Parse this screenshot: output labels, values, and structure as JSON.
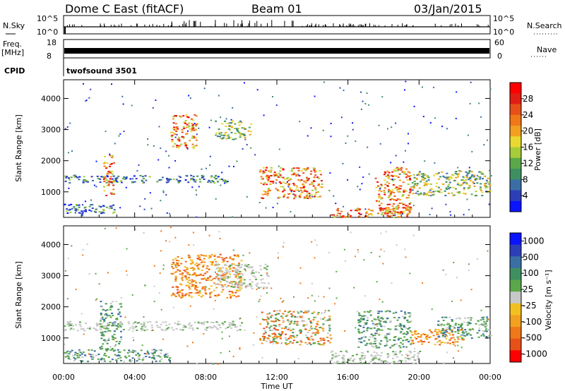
{
  "header": {
    "title": "Dome C East (fitACF)",
    "beam": "Beam 01",
    "date": "03/Jan/2015"
  },
  "top_panels": {
    "nsky_label": "N.Sky",
    "nsky_ticks": [
      "10^5",
      "10^0"
    ],
    "nsearch_label": "N.Search",
    "freq_label": "Freq.",
    "freq_unit": "[MHz]",
    "freq_ticks": [
      "18",
      "8"
    ],
    "nave_label": "Nave",
    "nave_ticks": [
      "60",
      "0"
    ],
    "cpid_label": "CPID",
    "cpid_value": "twofsound 3501"
  },
  "chart_data": [
    {
      "type": "heatmap",
      "name": "power",
      "ylabel": "Slant Range [km]",
      "xlabel": "",
      "x_ticks": [
        "00:00",
        "04:00",
        "08:00",
        "12:00",
        "16:00",
        "20:00",
        "00:00"
      ],
      "y_ticks": [
        1000,
        2000,
        3000,
        4000
      ],
      "ylim": [
        180,
        4600
      ],
      "colorbar": {
        "label": "Power [dB]",
        "ticks": [
          4,
          8,
          12,
          16,
          20,
          24,
          28
        ],
        "range": [
          0,
          32
        ],
        "colors": [
          "#0a14ff",
          "#2d3fb8",
          "#3a6fa6",
          "#3f9060",
          "#5aa84a",
          "#a6cc3a",
          "#e9d830",
          "#f2a020",
          "#f07818",
          "#e8501a",
          "#e01e14",
          "#ff0000"
        ]
      },
      "features": [
        {
          "t0": 0.0,
          "t1": 9.2,
          "r0": 1300,
          "r1": 1550,
          "level": "low"
        },
        {
          "t0": 0.0,
          "t1": 3.0,
          "r0": 300,
          "r1": 620,
          "level": "low"
        },
        {
          "t0": 2.2,
          "t1": 2.8,
          "r0": 900,
          "r1": 2200,
          "level": "high"
        },
        {
          "t0": 6.0,
          "t1": 7.5,
          "r0": 2400,
          "r1": 3500,
          "level": "high"
        },
        {
          "t0": 8.5,
          "t1": 10.5,
          "r0": 2700,
          "r1": 3300,
          "level": "mid"
        },
        {
          "t0": 11.0,
          "t1": 14.5,
          "r0": 800,
          "r1": 1800,
          "level": "high"
        },
        {
          "t0": 15.0,
          "t1": 19.5,
          "r0": 200,
          "r1": 500,
          "level": "high"
        },
        {
          "t0": 17.5,
          "t1": 19.5,
          "r0": 300,
          "r1": 1800,
          "level": "high"
        },
        {
          "t0": 19.5,
          "t1": 24.0,
          "r0": 900,
          "r1": 1700,
          "level": "mid"
        }
      ]
    },
    {
      "type": "heatmap",
      "name": "velocity",
      "ylabel": "Slant Range [km]",
      "xlabel": "Time UT",
      "x_ticks": [
        "00:00",
        "04:00",
        "08:00",
        "12:00",
        "16:00",
        "20:00",
        "00:00"
      ],
      "y_ticks": [
        1000,
        2000,
        3000,
        4000
      ],
      "ylim": [
        180,
        4600
      ],
      "colorbar": {
        "label": "Velocity [m s⁻¹]",
        "ticks": [
          1000,
          500,
          100,
          25,
          -25,
          -100,
          -500,
          -1000
        ],
        "colors": [
          "#0a14ff",
          "#2d3fb8",
          "#3a6fa6",
          "#3f9060",
          "#5aa84a",
          "#c8c8c8",
          "#f2c020",
          "#f2a020",
          "#f07818",
          "#e8501a",
          "#ff0000"
        ]
      },
      "features": [
        {
          "t0": 0.0,
          "t1": 10.0,
          "r0": 1250,
          "r1": 1550,
          "level": "ground"
        },
        {
          "t0": 0.0,
          "t1": 6.0,
          "r0": 250,
          "r1": 650,
          "level": "toward"
        },
        {
          "t0": 2.0,
          "t1": 3.2,
          "r0": 600,
          "r1": 2200,
          "level": "toward"
        },
        {
          "t0": 6.0,
          "t1": 10.0,
          "r0": 2300,
          "r1": 3700,
          "level": "away"
        },
        {
          "t0": 8.5,
          "t1": 11.5,
          "r0": 2600,
          "r1": 3400,
          "level": "ground"
        },
        {
          "t0": 11.0,
          "t1": 15.0,
          "r0": 800,
          "r1": 1900,
          "level": "mixed"
        },
        {
          "t0": 15.0,
          "t1": 20.0,
          "r0": 200,
          "r1": 600,
          "level": "ground"
        },
        {
          "t0": 16.5,
          "t1": 19.5,
          "r0": 700,
          "r1": 1900,
          "level": "toward"
        },
        {
          "t0": 19.5,
          "t1": 22.5,
          "r0": 800,
          "r1": 1300,
          "level": "away"
        },
        {
          "t0": 21.0,
          "t1": 24.0,
          "r0": 1000,
          "r1": 1700,
          "level": "toward"
        }
      ]
    }
  ]
}
